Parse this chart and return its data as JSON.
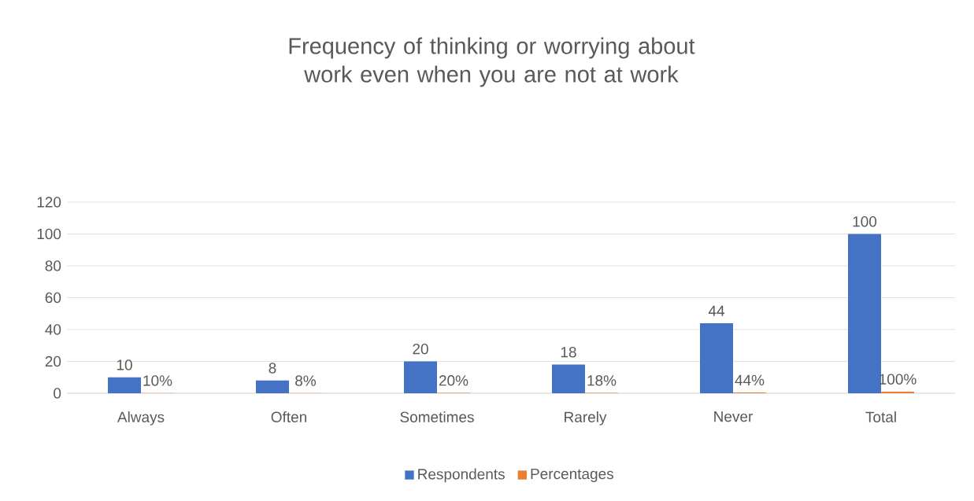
{
  "chart_data": {
    "type": "bar",
    "title": "Frequency of thinking or worrying about work even when you are not at work",
    "categories": [
      "Always",
      "Often",
      "Sometimes",
      "Rarely",
      "Never",
      "Total"
    ],
    "series": [
      {
        "name": "Respondents",
        "color": "#4472c4",
        "values": [
          10,
          8,
          20,
          18,
          44,
          100
        ],
        "value_labels": [
          "10",
          "8",
          "20",
          "18",
          "44",
          "100"
        ]
      },
      {
        "name": "Percentages",
        "color": "#ed7d31",
        "values": [
          0.1,
          0.08,
          0.2,
          0.18,
          0.44,
          1
        ],
        "value_labels": [
          "10%",
          "8%",
          "20%",
          "18%",
          "44%",
          "100%"
        ]
      }
    ],
    "ylim": [
      0,
      120
    ],
    "yticks": [
      0,
      20,
      40,
      60,
      80,
      100,
      120
    ],
    "grid": "y",
    "legend": "bottom"
  }
}
